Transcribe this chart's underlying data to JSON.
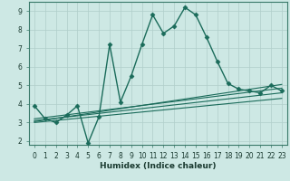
{
  "xlabel": "Humidex (Indice chaleur)",
  "background_color": "#cde8e4",
  "plot_bg_color": "#cde8e4",
  "grid_color": "#b0ceca",
  "line_color": "#1a6b5a",
  "xlim": [
    -0.5,
    23.5
  ],
  "ylim": [
    1.8,
    9.5
  ],
  "xticks": [
    0,
    1,
    2,
    3,
    4,
    5,
    6,
    7,
    8,
    9,
    10,
    11,
    12,
    13,
    14,
    15,
    16,
    17,
    18,
    19,
    20,
    21,
    22,
    23
  ],
  "yticks": [
    2,
    3,
    4,
    5,
    6,
    7,
    8,
    9
  ],
  "main_x": [
    0,
    1,
    2,
    3,
    4,
    5,
    6,
    7,
    8,
    9,
    10,
    11,
    12,
    13,
    14,
    15,
    16,
    17,
    18,
    19,
    20,
    21,
    22,
    23
  ],
  "main_y": [
    3.9,
    3.2,
    3.0,
    3.4,
    3.9,
    1.9,
    3.3,
    7.2,
    4.1,
    5.5,
    7.2,
    8.8,
    7.8,
    8.2,
    9.2,
    8.8,
    7.6,
    6.3,
    5.1,
    4.8,
    4.7,
    4.6,
    5.0,
    4.7
  ],
  "reg_lines": [
    {
      "x": [
        0,
        23
      ],
      "y": [
        3.0,
        4.3
      ]
    },
    {
      "x": [
        0,
        23
      ],
      "y": [
        3.1,
        4.6
      ]
    },
    {
      "x": [
        0,
        23
      ],
      "y": [
        3.2,
        4.85
      ]
    },
    {
      "x": [
        0,
        23
      ],
      "y": [
        3.05,
        5.05
      ]
    }
  ],
  "xlabel_fontsize": 6.5,
  "tick_fontsize": 5.5,
  "xlabel_color": "#1a3a30"
}
